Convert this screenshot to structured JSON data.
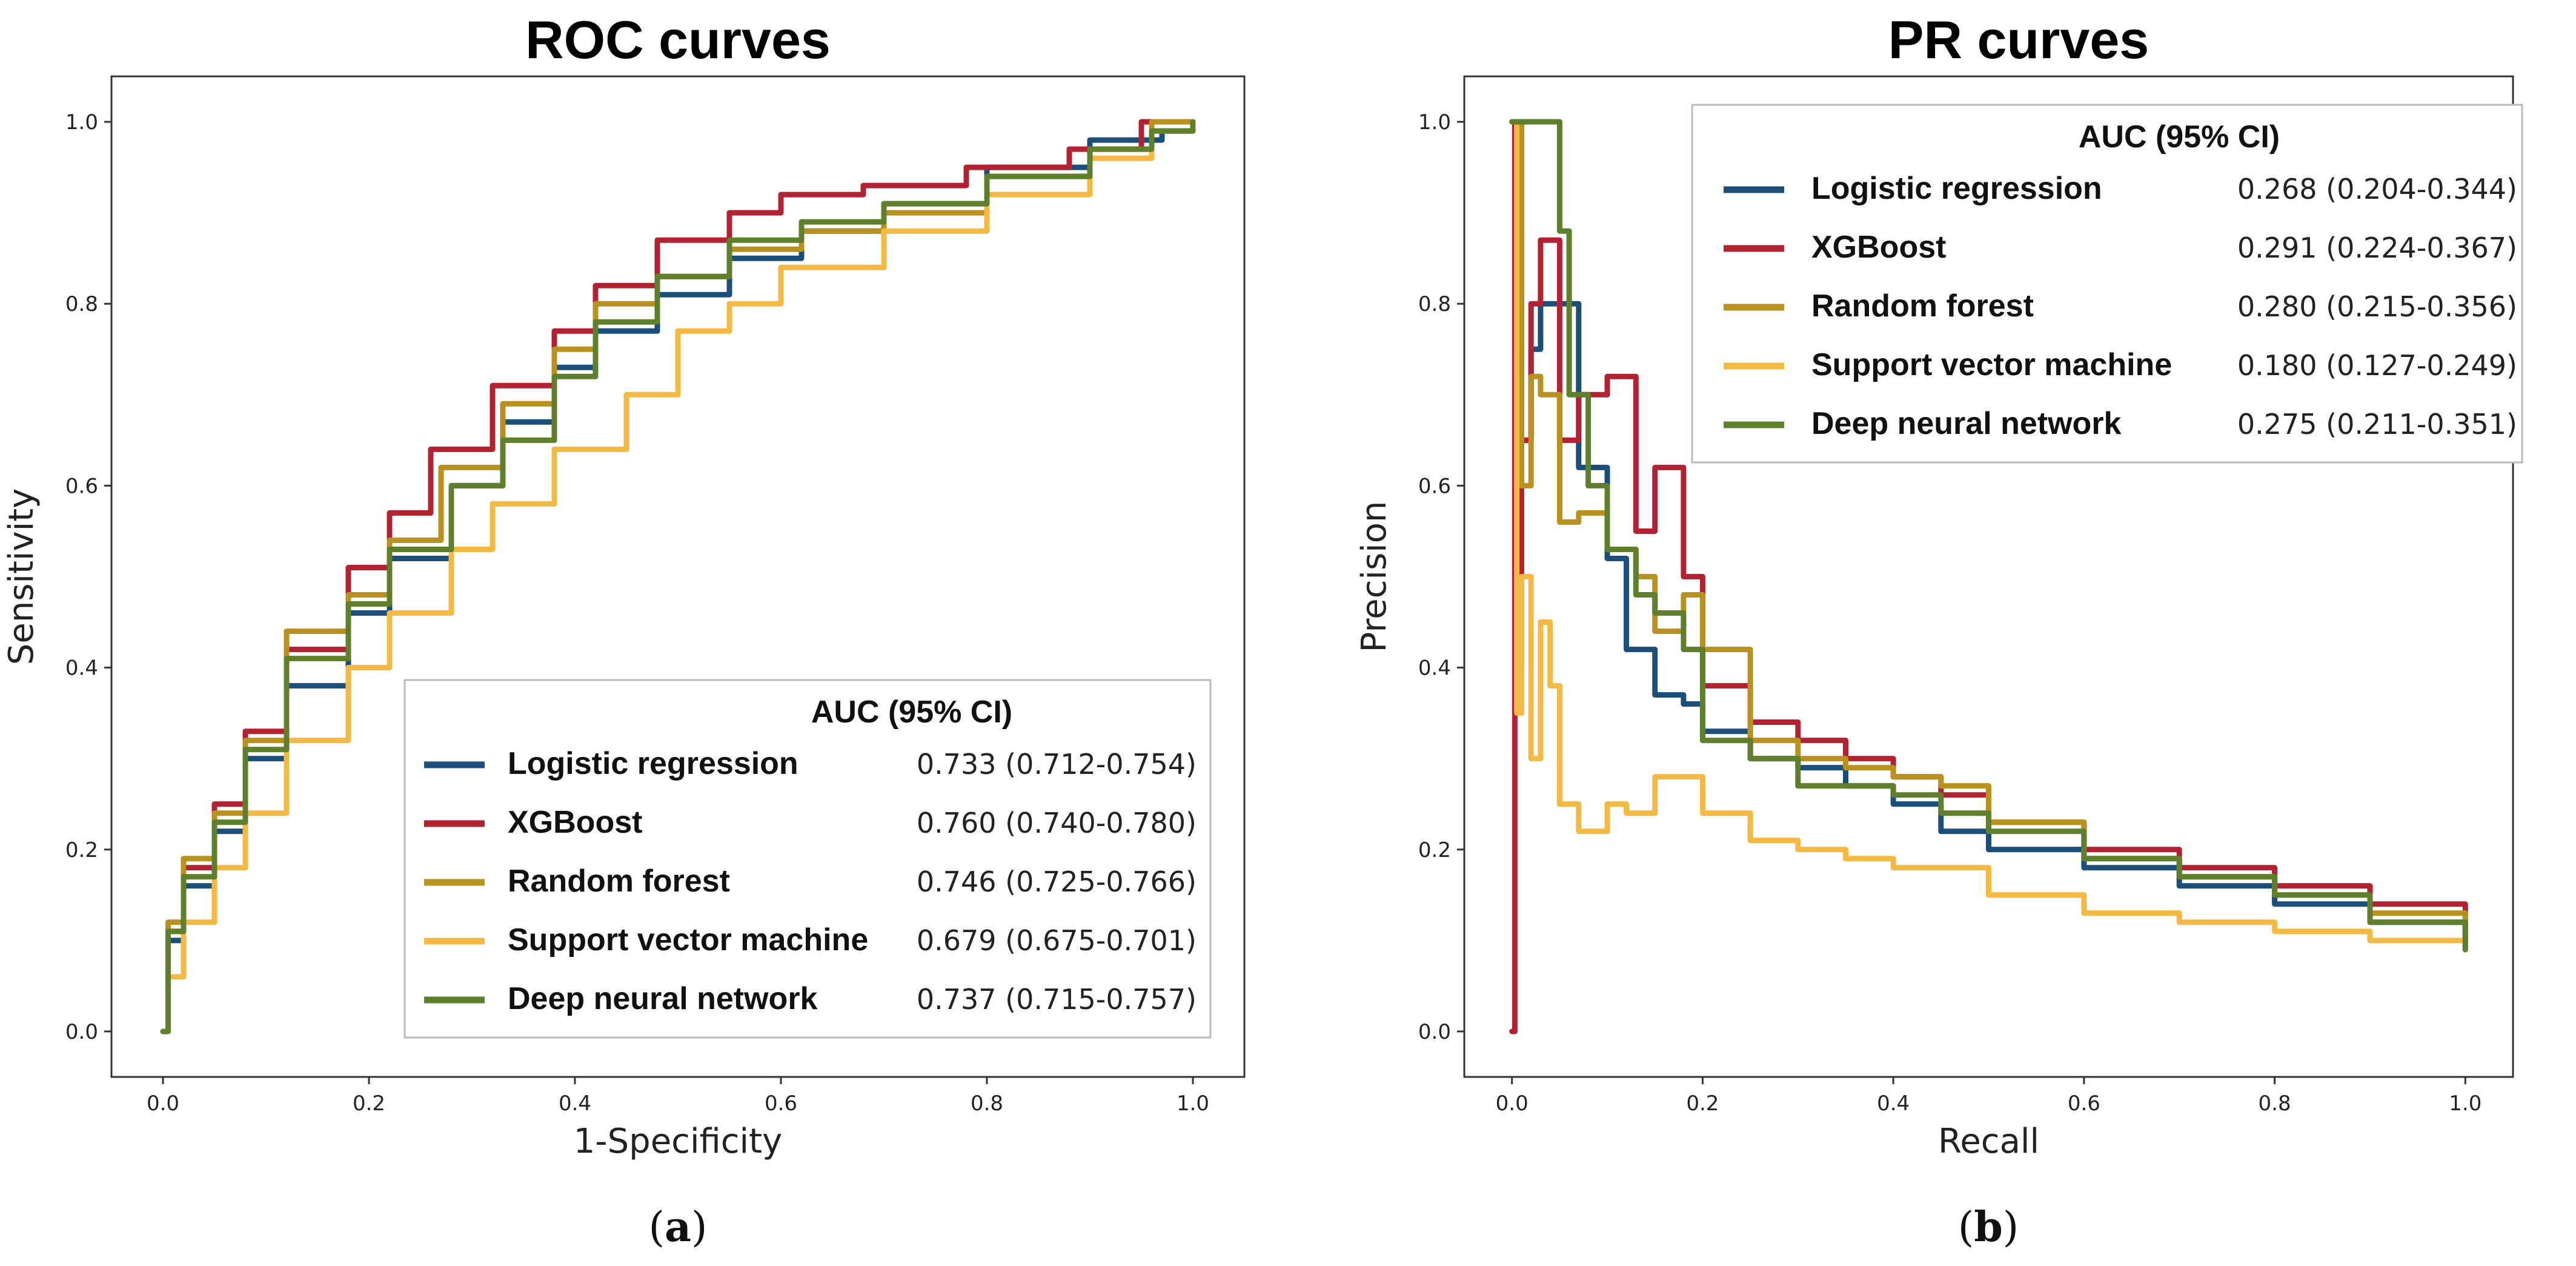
{
  "colors": {
    "Logistic regression": "#1b4f7a",
    "XGBoost": "#b22233",
    "Random forest": "#b8911e",
    "Support vector machine": "#f4b942",
    "Deep neural network": "#5f7f2c"
  },
  "chart_data": [
    {
      "id": "roc",
      "type": "line",
      "title": "ROC curves",
      "xlabel": "1-Specificity",
      "ylabel": "Sensitivity",
      "xlim": [
        -0.05,
        1.05
      ],
      "ylim": [
        -0.05,
        1.05
      ],
      "xticks": [
        "0.0",
        "0.2",
        "0.4",
        "0.6",
        "0.8",
        "1.0"
      ],
      "yticks": [
        "0.0",
        "0.2",
        "0.4",
        "0.6",
        "0.8",
        "1.0"
      ],
      "legend": {
        "header": "AUC (95% CI)",
        "position": "lower-right"
      },
      "panel_label": "(a)",
      "series": [
        {
          "name": "Logistic regression",
          "auc": "0.733 (0.712-0.754)",
          "x": [
            0,
            0.005,
            0.02,
            0.05,
            0.08,
            0.12,
            0.18,
            0.22,
            0.28,
            0.33,
            0.38,
            0.42,
            0.48,
            0.55,
            0.62,
            0.7,
            0.8,
            0.9,
            0.97,
            1.0
          ],
          "y": [
            0,
            0.1,
            0.16,
            0.22,
            0.3,
            0.38,
            0.46,
            0.52,
            0.6,
            0.67,
            0.73,
            0.77,
            0.81,
            0.85,
            0.88,
            0.91,
            0.95,
            0.98,
            0.99,
            1.0
          ]
        },
        {
          "name": "XGBoost",
          "auc": "0.760 (0.740-0.780)",
          "x": [
            0,
            0.005,
            0.02,
            0.05,
            0.08,
            0.12,
            0.18,
            0.22,
            0.26,
            0.32,
            0.38,
            0.42,
            0.48,
            0.55,
            0.6,
            0.68,
            0.78,
            0.88,
            0.95,
            1.0
          ],
          "y": [
            0,
            0.11,
            0.18,
            0.25,
            0.33,
            0.42,
            0.51,
            0.57,
            0.64,
            0.71,
            0.77,
            0.82,
            0.87,
            0.9,
            0.92,
            0.93,
            0.95,
            0.97,
            1.0,
            1.0
          ]
        },
        {
          "name": "Random forest",
          "auc": "0.746 (0.725-0.766)",
          "x": [
            0,
            0.005,
            0.02,
            0.05,
            0.08,
            0.12,
            0.18,
            0.22,
            0.27,
            0.33,
            0.38,
            0.42,
            0.48,
            0.55,
            0.62,
            0.7,
            0.8,
            0.9,
            0.96,
            1.0
          ],
          "y": [
            0,
            0.12,
            0.19,
            0.24,
            0.32,
            0.44,
            0.48,
            0.54,
            0.62,
            0.69,
            0.75,
            0.8,
            0.83,
            0.86,
            0.88,
            0.9,
            0.94,
            0.97,
            1.0,
            1.0
          ]
        },
        {
          "name": "Support vector machine",
          "auc": "0.679 (0.675-0.701)",
          "x": [
            0,
            0.005,
            0.02,
            0.05,
            0.08,
            0.12,
            0.18,
            0.22,
            0.28,
            0.32,
            0.38,
            0.45,
            0.5,
            0.55,
            0.6,
            0.7,
            0.8,
            0.9,
            0.96,
            1.0
          ],
          "y": [
            0,
            0.06,
            0.12,
            0.18,
            0.24,
            0.32,
            0.4,
            0.46,
            0.53,
            0.58,
            0.64,
            0.7,
            0.77,
            0.8,
            0.84,
            0.88,
            0.92,
            0.96,
            0.99,
            1.0
          ]
        },
        {
          "name": "Deep neural network",
          "auc": "0.737 (0.715-0.757)",
          "x": [
            0,
            0.005,
            0.02,
            0.05,
            0.08,
            0.12,
            0.18,
            0.22,
            0.28,
            0.33,
            0.38,
            0.42,
            0.48,
            0.55,
            0.62,
            0.7,
            0.8,
            0.9,
            0.96,
            1.0
          ],
          "y": [
            0,
            0.11,
            0.17,
            0.23,
            0.31,
            0.41,
            0.47,
            0.53,
            0.6,
            0.65,
            0.72,
            0.78,
            0.83,
            0.87,
            0.89,
            0.91,
            0.94,
            0.97,
            0.99,
            1.0
          ]
        }
      ]
    },
    {
      "id": "pr",
      "type": "line",
      "title": "PR curves",
      "xlabel": "Recall",
      "ylabel": "Precision",
      "xlim": [
        -0.05,
        1.05
      ],
      "ylim": [
        -0.05,
        1.05
      ],
      "xticks": [
        "0.0",
        "0.2",
        "0.4",
        "0.6",
        "0.8",
        "1.0"
      ],
      "yticks": [
        "0.0",
        "0.2",
        "0.4",
        "0.6",
        "0.8",
        "1.0"
      ],
      "legend": {
        "header": "AUC (95% CI)",
        "position": "upper-right"
      },
      "panel_label": "(b)",
      "series": [
        {
          "name": "Logistic regression",
          "auc": "0.268 (0.204-0.344)",
          "x": [
            0,
            0.005,
            0.01,
            0.02,
            0.03,
            0.05,
            0.07,
            0.1,
            0.12,
            0.15,
            0.18,
            0.2,
            0.25,
            0.3,
            0.35,
            0.4,
            0.45,
            0.5,
            0.6,
            0.7,
            0.8,
            0.9,
            1.0
          ],
          "y": [
            1.0,
            1.0,
            0.65,
            0.75,
            0.8,
            0.8,
            0.62,
            0.52,
            0.42,
            0.37,
            0.36,
            0.33,
            0.3,
            0.29,
            0.27,
            0.25,
            0.22,
            0.2,
            0.18,
            0.16,
            0.14,
            0.12,
            0.09
          ]
        },
        {
          "name": "XGBoost",
          "auc": "0.291 (0.224-0.367)",
          "x": [
            0,
            0.003,
            0.006,
            0.01,
            0.02,
            0.03,
            0.05,
            0.07,
            0.1,
            0.13,
            0.15,
            0.18,
            0.2,
            0.25,
            0.3,
            0.35,
            0.4,
            0.45,
            0.5,
            0.6,
            0.7,
            0.8,
            0.9,
            1.0
          ],
          "y": [
            0,
            1.0,
            0.4,
            0.65,
            0.8,
            0.87,
            0.65,
            0.7,
            0.72,
            0.55,
            0.62,
            0.5,
            0.38,
            0.34,
            0.32,
            0.3,
            0.28,
            0.26,
            0.23,
            0.2,
            0.18,
            0.16,
            0.14,
            0.09
          ]
        },
        {
          "name": "Random forest",
          "auc": "0.280 (0.215-0.356)",
          "x": [
            0,
            0.003,
            0.01,
            0.02,
            0.03,
            0.05,
            0.07,
            0.1,
            0.13,
            0.15,
            0.18,
            0.2,
            0.25,
            0.3,
            0.35,
            0.4,
            0.45,
            0.5,
            0.6,
            0.7,
            0.8,
            0.9,
            1.0
          ],
          "y": [
            1.0,
            1.0,
            0.6,
            0.72,
            0.7,
            0.56,
            0.57,
            0.53,
            0.5,
            0.44,
            0.48,
            0.42,
            0.32,
            0.3,
            0.29,
            0.28,
            0.27,
            0.23,
            0.19,
            0.17,
            0.15,
            0.13,
            0.09
          ]
        },
        {
          "name": "Support vector machine",
          "auc": "0.180 (0.127-0.249)",
          "x": [
            0,
            0.005,
            0.01,
            0.02,
            0.03,
            0.04,
            0.05,
            0.07,
            0.1,
            0.12,
            0.15,
            0.2,
            0.25,
            0.3,
            0.35,
            0.4,
            0.5,
            0.6,
            0.7,
            0.8,
            0.9,
            1.0
          ],
          "y": [
            1.0,
            0.35,
            0.5,
            0.3,
            0.45,
            0.38,
            0.25,
            0.22,
            0.25,
            0.24,
            0.28,
            0.24,
            0.21,
            0.2,
            0.19,
            0.18,
            0.15,
            0.13,
            0.12,
            0.11,
            0.1,
            0.09
          ]
        },
        {
          "name": "Deep neural network",
          "auc": "0.275 (0.211-0.351)",
          "x": [
            0,
            0.02,
            0.04,
            0.05,
            0.06,
            0.08,
            0.1,
            0.13,
            0.15,
            0.18,
            0.2,
            0.25,
            0.3,
            0.35,
            0.4,
            0.45,
            0.5,
            0.6,
            0.7,
            0.8,
            0.9,
            1.0
          ],
          "y": [
            1.0,
            1.0,
            1.0,
            0.88,
            0.7,
            0.6,
            0.53,
            0.48,
            0.46,
            0.42,
            0.32,
            0.3,
            0.27,
            0.27,
            0.26,
            0.24,
            0.22,
            0.19,
            0.17,
            0.15,
            0.12,
            0.09
          ]
        }
      ]
    }
  ]
}
